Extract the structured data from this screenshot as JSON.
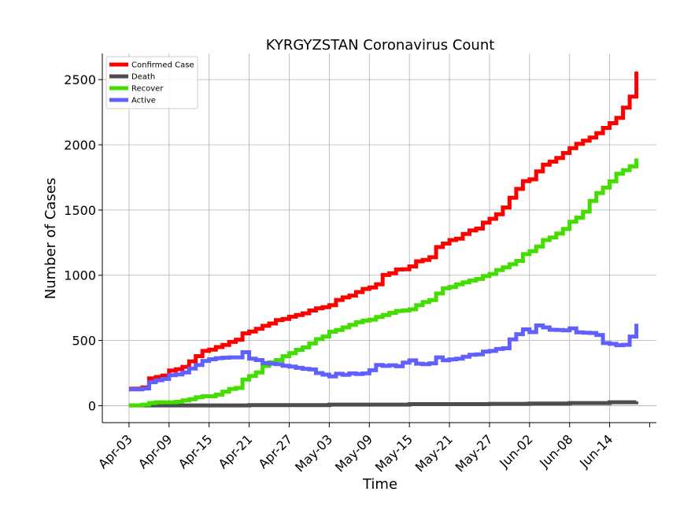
{
  "chart_data": {
    "type": "line",
    "title": "KYRGYZSTAN Coronavirus Count",
    "xlabel": "Time",
    "ylabel": "Number of Cases",
    "xlim": [
      "2020-03-30",
      "2020-06-21"
    ],
    "ylim": [
      -130,
      2700
    ],
    "x_ticks": [
      "Apr-03",
      "Apr-09",
      "Apr-15",
      "Apr-21",
      "Apr-27",
      "May-03",
      "May-09",
      "May-15",
      "May-21",
      "May-27",
      "Jun-02",
      "Jun-08",
      "Jun-14"
    ],
    "y_ticks": [
      0,
      500,
      1000,
      1500,
      2000,
      2500
    ],
    "grid": true,
    "legend_position": "top-left",
    "series": [
      {
        "name": "Confirmed Case",
        "color": "#ff0000",
        "points": [
          [
            "2020-04-03",
            130
          ],
          [
            "2020-04-05",
            140
          ],
          [
            "2020-04-06",
            150
          ],
          [
            "2020-04-06",
            210
          ],
          [
            "2020-04-07",
            220
          ],
          [
            "2020-04-08",
            230
          ],
          [
            "2020-04-09",
            270
          ],
          [
            "2020-04-10",
            280
          ],
          [
            "2020-04-11",
            298
          ],
          [
            "2020-04-12",
            340
          ],
          [
            "2020-04-13",
            380
          ],
          [
            "2020-04-14",
            420
          ],
          [
            "2020-04-15",
            430
          ],
          [
            "2020-04-16",
            449
          ],
          [
            "2020-04-17",
            466
          ],
          [
            "2020-04-18",
            489
          ],
          [
            "2020-04-19",
            506
          ],
          [
            "2020-04-20",
            554
          ],
          [
            "2020-04-21",
            568
          ],
          [
            "2020-04-22",
            590
          ],
          [
            "2020-04-23",
            612
          ],
          [
            "2020-04-24",
            630
          ],
          [
            "2020-04-25",
            656
          ],
          [
            "2020-04-26",
            665
          ],
          [
            "2020-04-27",
            682
          ],
          [
            "2020-04-28",
            695
          ],
          [
            "2020-04-29",
            708
          ],
          [
            "2020-04-30",
            730
          ],
          [
            "2020-05-01",
            746
          ],
          [
            "2020-05-02",
            756
          ],
          [
            "2020-05-03",
            771
          ],
          [
            "2020-05-04",
            811
          ],
          [
            "2020-05-05",
            830
          ],
          [
            "2020-05-06",
            844
          ],
          [
            "2020-05-07",
            871
          ],
          [
            "2020-05-08",
            895
          ],
          [
            "2020-05-09",
            906
          ],
          [
            "2020-05-10",
            931
          ],
          [
            "2020-05-11",
            1002
          ],
          [
            "2020-05-12",
            1016
          ],
          [
            "2020-05-13",
            1044
          ],
          [
            "2020-05-14",
            1046
          ],
          [
            "2020-05-15",
            1068
          ],
          [
            "2020-05-16",
            1107
          ],
          [
            "2020-05-17",
            1117
          ],
          [
            "2020-05-18",
            1138
          ],
          [
            "2020-05-19",
            1138
          ],
          [
            "2020-05-19",
            1216
          ],
          [
            "2020-05-20",
            1243
          ],
          [
            "2020-05-21",
            1270
          ],
          [
            "2020-05-22",
            1280
          ],
          [
            "2020-05-23",
            1317
          ],
          [
            "2020-05-24",
            1344
          ],
          [
            "2020-05-25",
            1358
          ],
          [
            "2020-05-26",
            1403
          ],
          [
            "2020-05-27",
            1433
          ],
          [
            "2020-05-28",
            1468
          ],
          [
            "2020-05-29",
            1520
          ],
          [
            "2020-05-30",
            1594
          ],
          [
            "2020-05-31",
            1662
          ],
          [
            "2020-06-01",
            1722
          ],
          [
            "2020-06-02",
            1735
          ],
          [
            "2020-06-03",
            1796
          ],
          [
            "2020-06-04",
            1848
          ],
          [
            "2020-06-05",
            1871
          ],
          [
            "2020-06-06",
            1899
          ],
          [
            "2020-06-07",
            1937
          ],
          [
            "2020-06-08",
            1974
          ],
          [
            "2020-06-09",
            2007
          ],
          [
            "2020-06-10",
            2032
          ],
          [
            "2020-06-11",
            2056
          ],
          [
            "2020-06-12",
            2089
          ],
          [
            "2020-06-13",
            2130
          ],
          [
            "2020-06-14",
            2166
          ],
          [
            "2020-06-15",
            2207
          ],
          [
            "2020-06-16",
            2285
          ],
          [
            "2020-06-17",
            2370
          ],
          [
            "2020-06-18",
            2470
          ],
          [
            "2020-06-18",
            2562
          ]
        ]
      },
      {
        "name": "Death",
        "color": "#4d4d4d",
        "points": [
          [
            "2020-04-03",
            2
          ],
          [
            "2020-04-21",
            4
          ],
          [
            "2020-05-03",
            8
          ],
          [
            "2020-05-15",
            12
          ],
          [
            "2020-05-27",
            14
          ],
          [
            "2020-06-02",
            16
          ],
          [
            "2020-06-08",
            20
          ],
          [
            "2020-06-14",
            26
          ],
          [
            "2020-06-18",
            32
          ]
        ]
      },
      {
        "name": "Recover",
        "color": "#44dd00",
        "points": [
          [
            "2020-04-03",
            3
          ],
          [
            "2020-04-05",
            8
          ],
          [
            "2020-04-06",
            20
          ],
          [
            "2020-04-07",
            26
          ],
          [
            "2020-04-10",
            30
          ],
          [
            "2020-04-11",
            40
          ],
          [
            "2020-04-12",
            50
          ],
          [
            "2020-04-13",
            65
          ],
          [
            "2020-04-14",
            72
          ],
          [
            "2020-04-16",
            85
          ],
          [
            "2020-04-17",
            108
          ],
          [
            "2020-04-18",
            128
          ],
          [
            "2020-04-19",
            136
          ],
          [
            "2020-04-20",
            200
          ],
          [
            "2020-04-21",
            228
          ],
          [
            "2020-04-22",
            255
          ],
          [
            "2020-04-23",
            305
          ],
          [
            "2020-04-24",
            332
          ],
          [
            "2020-04-25",
            350
          ],
          [
            "2020-04-26",
            379
          ],
          [
            "2020-04-27",
            402
          ],
          [
            "2020-04-28",
            428
          ],
          [
            "2020-04-29",
            447
          ],
          [
            "2020-04-30",
            477
          ],
          [
            "2020-05-01",
            510
          ],
          [
            "2020-05-02",
            530
          ],
          [
            "2020-05-03",
            567
          ],
          [
            "2020-05-04",
            580
          ],
          [
            "2020-05-05",
            600
          ],
          [
            "2020-05-06",
            620
          ],
          [
            "2020-05-07",
            640
          ],
          [
            "2020-05-08",
            652
          ],
          [
            "2020-05-09",
            660
          ],
          [
            "2020-05-10",
            680
          ],
          [
            "2020-05-11",
            695
          ],
          [
            "2020-05-12",
            712
          ],
          [
            "2020-05-13",
            726
          ],
          [
            "2020-05-14",
            730
          ],
          [
            "2020-05-15",
            739
          ],
          [
            "2020-05-16",
            770
          ],
          [
            "2020-05-17",
            795
          ],
          [
            "2020-05-18",
            810
          ],
          [
            "2020-05-19",
            860
          ],
          [
            "2020-05-20",
            900
          ],
          [
            "2020-05-21",
            910
          ],
          [
            "2020-05-22",
            930
          ],
          [
            "2020-05-23",
            946
          ],
          [
            "2020-05-24",
            960
          ],
          [
            "2020-05-25",
            972
          ],
          [
            "2020-05-26",
            994
          ],
          [
            "2020-05-27",
            1010
          ],
          [
            "2020-05-28",
            1040
          ],
          [
            "2020-05-29",
            1060
          ],
          [
            "2020-05-30",
            1084
          ],
          [
            "2020-05-31",
            1110
          ],
          [
            "2020-06-01",
            1162
          ],
          [
            "2020-06-02",
            1185
          ],
          [
            "2020-06-03",
            1220
          ],
          [
            "2020-06-04",
            1270
          ],
          [
            "2020-06-05",
            1290
          ],
          [
            "2020-06-06",
            1320
          ],
          [
            "2020-06-07",
            1355
          ],
          [
            "2020-06-08",
            1410
          ],
          [
            "2020-06-09",
            1442
          ],
          [
            "2020-06-10",
            1488
          ],
          [
            "2020-06-11",
            1570
          ],
          [
            "2020-06-12",
            1630
          ],
          [
            "2020-06-13",
            1672
          ],
          [
            "2020-06-14",
            1720
          ],
          [
            "2020-06-15",
            1778
          ],
          [
            "2020-06-16",
            1805
          ],
          [
            "2020-06-17",
            1835
          ],
          [
            "2020-06-18",
            1860
          ],
          [
            "2020-06-18",
            1895
          ]
        ]
      },
      {
        "name": "Active",
        "color": "#6060ff",
        "points": [
          [
            "2020-04-03",
            125
          ],
          [
            "2020-04-05",
            132
          ],
          [
            "2020-04-06",
            140
          ],
          [
            "2020-04-06",
            180
          ],
          [
            "2020-04-07",
            195
          ],
          [
            "2020-04-08",
            205
          ],
          [
            "2020-04-09",
            233
          ],
          [
            "2020-04-10",
            240
          ],
          [
            "2020-04-11",
            255
          ],
          [
            "2020-04-12",
            285
          ],
          [
            "2020-04-13",
            312
          ],
          [
            "2020-04-14",
            343
          ],
          [
            "2020-04-15",
            356
          ],
          [
            "2020-04-16",
            364
          ],
          [
            "2020-04-17",
            368
          ],
          [
            "2020-04-18",
            370
          ],
          [
            "2020-04-19",
            370
          ],
          [
            "2020-04-20",
            410
          ],
          [
            "2020-04-21",
            360
          ],
          [
            "2020-04-22",
            350
          ],
          [
            "2020-04-23",
            327
          ],
          [
            "2020-04-24",
            322
          ],
          [
            "2020-04-25",
            318
          ],
          [
            "2020-04-26",
            306
          ],
          [
            "2020-04-27",
            300
          ],
          [
            "2020-04-28",
            290
          ],
          [
            "2020-04-29",
            283
          ],
          [
            "2020-04-30",
            278
          ],
          [
            "2020-05-01",
            250
          ],
          [
            "2020-05-02",
            238
          ],
          [
            "2020-05-03",
            224
          ],
          [
            "2020-05-04",
            245
          ],
          [
            "2020-05-05",
            236
          ],
          [
            "2020-05-06",
            248
          ],
          [
            "2020-05-07",
            243
          ],
          [
            "2020-05-08",
            248
          ],
          [
            "2020-05-09",
            272
          ],
          [
            "2020-05-10",
            312
          ],
          [
            "2020-05-11",
            305
          ],
          [
            "2020-05-12",
            310
          ],
          [
            "2020-05-13",
            302
          ],
          [
            "2020-05-14",
            330
          ],
          [
            "2020-05-15",
            347
          ],
          [
            "2020-05-16",
            322
          ],
          [
            "2020-05-17",
            318
          ],
          [
            "2020-05-18",
            325
          ],
          [
            "2020-05-19",
            370
          ],
          [
            "2020-05-20",
            348
          ],
          [
            "2020-05-21",
            355
          ],
          [
            "2020-05-22",
            360
          ],
          [
            "2020-05-23",
            375
          ],
          [
            "2020-05-24",
            390
          ],
          [
            "2020-05-25",
            393
          ],
          [
            "2020-05-26",
            415
          ],
          [
            "2020-05-27",
            420
          ],
          [
            "2020-05-28",
            435
          ],
          [
            "2020-05-29",
            440
          ],
          [
            "2020-05-30",
            508
          ],
          [
            "2020-05-31",
            548
          ],
          [
            "2020-06-01",
            585
          ],
          [
            "2020-06-02",
            564
          ],
          [
            "2020-06-03",
            615
          ],
          [
            "2020-06-04",
            600
          ],
          [
            "2020-06-05",
            582
          ],
          [
            "2020-06-06",
            580
          ],
          [
            "2020-06-07",
            578
          ],
          [
            "2020-06-08",
            592
          ],
          [
            "2020-06-09",
            563
          ],
          [
            "2020-06-10",
            560
          ],
          [
            "2020-06-11",
            557
          ],
          [
            "2020-06-12",
            542
          ],
          [
            "2020-06-13",
            480
          ],
          [
            "2020-06-14",
            474
          ],
          [
            "2020-06-15",
            464
          ],
          [
            "2020-06-16",
            467
          ],
          [
            "2020-06-17",
            530
          ],
          [
            "2020-06-18",
            590
          ],
          [
            "2020-06-18",
            628
          ]
        ]
      }
    ]
  }
}
